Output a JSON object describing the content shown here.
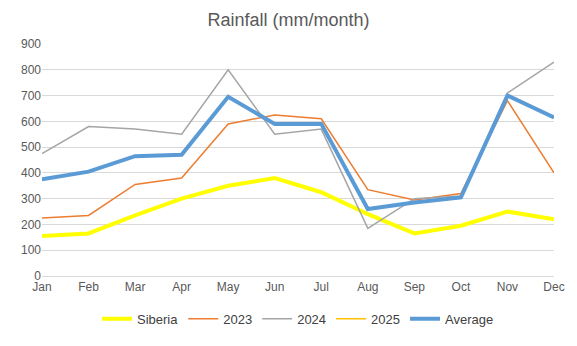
{
  "chart_data": {
    "type": "line",
    "title": "Rainfall (mm/month)",
    "categories": [
      "Jan",
      "Feb",
      "Mar",
      "Apr",
      "May",
      "Jun",
      "Jul",
      "Aug",
      "Sep",
      "Oct",
      "Nov",
      "Dec"
    ],
    "series": [
      {
        "name": "Siberia",
        "color": "#FFFF00",
        "line_style": "thick",
        "values": [
          155,
          165,
          235,
          300,
          350,
          380,
          325,
          240,
          165,
          195,
          250,
          220
        ]
      },
      {
        "name": "2023",
        "color": "#ED7D31",
        "line_style": "thin",
        "values": [
          225,
          235,
          355,
          380,
          590,
          625,
          610,
          335,
          295,
          320,
          680,
          400
        ]
      },
      {
        "name": "2024",
        "color": "#A5A5A5",
        "line_style": "thin",
        "values": [
          475,
          580,
          570,
          550,
          800,
          550,
          570,
          185,
          300,
          310,
          710,
          830
        ]
      },
      {
        "name": "2025",
        "color": "#FFC000",
        "line_style": "thin",
        "values": [
          null,
          null,
          null,
          null,
          null,
          null,
          null,
          null,
          null,
          null,
          null,
          null
        ]
      },
      {
        "name": "Average",
        "color": "#5B9BD5",
        "line_style": "thick",
        "values": [
          375,
          405,
          465,
          470,
          695,
          590,
          590,
          260,
          285,
          305,
          700,
          615
        ]
      }
    ],
    "ylim": [
      0,
      900
    ],
    "yticks": [
      0,
      100,
      200,
      300,
      400,
      500,
      600,
      700,
      800,
      900
    ],
    "grid": true,
    "legend": "bottom"
  }
}
